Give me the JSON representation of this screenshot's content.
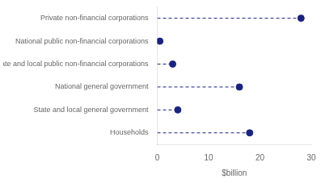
{
  "chart_data": {
    "type": "lollipop",
    "orientation": "horizontal",
    "categories": [
      "Private non-financial corporations",
      "National public non-financial corporations",
      "State and local public non-financial corporations",
      "National general government",
      "State and local general government",
      "Households"
    ],
    "values": [
      28.0,
      0.5,
      3.0,
      16.0,
      4.0,
      18.0
    ],
    "color": "#1a237e",
    "marker": "circle",
    "line_style": "dashed",
    "xlabel": "$billion",
    "xlim": [
      0,
      30
    ],
    "xticks": [
      0,
      10,
      20,
      30
    ],
    "grid": false
  }
}
